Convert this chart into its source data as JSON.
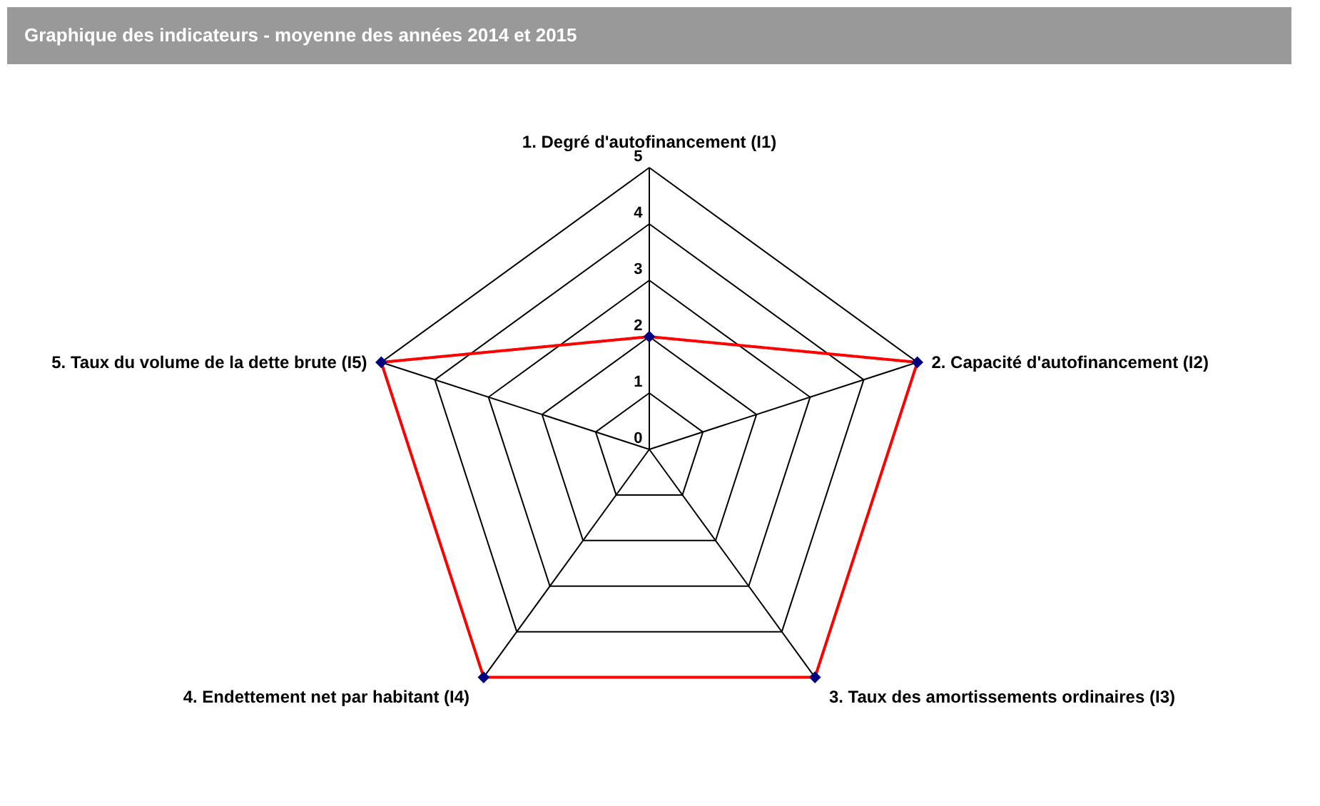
{
  "chart_data": {
    "type": "radar",
    "title": "Graphique des indicateurs - moyenne des années 2014 et 2015",
    "categories": [
      "1. Degré d'autofinancement (I1)",
      "2. Capacité d'autofinancement (I2)",
      "3. Taux des amortissements ordinaires (I3)",
      "4. Endettement net par habitant (I4)",
      "5. Taux du volume de la dette brute (I5)"
    ],
    "series": [
      {
        "color": "#ff0000",
        "values": [
          2,
          5,
          5,
          5,
          5
        ]
      }
    ],
    "ylim": [
      0,
      5
    ],
    "yticks": [
      0,
      1,
      2,
      3,
      4,
      5
    ],
    "grid": true,
    "marker": "diamond",
    "line_style": "solid"
  }
}
